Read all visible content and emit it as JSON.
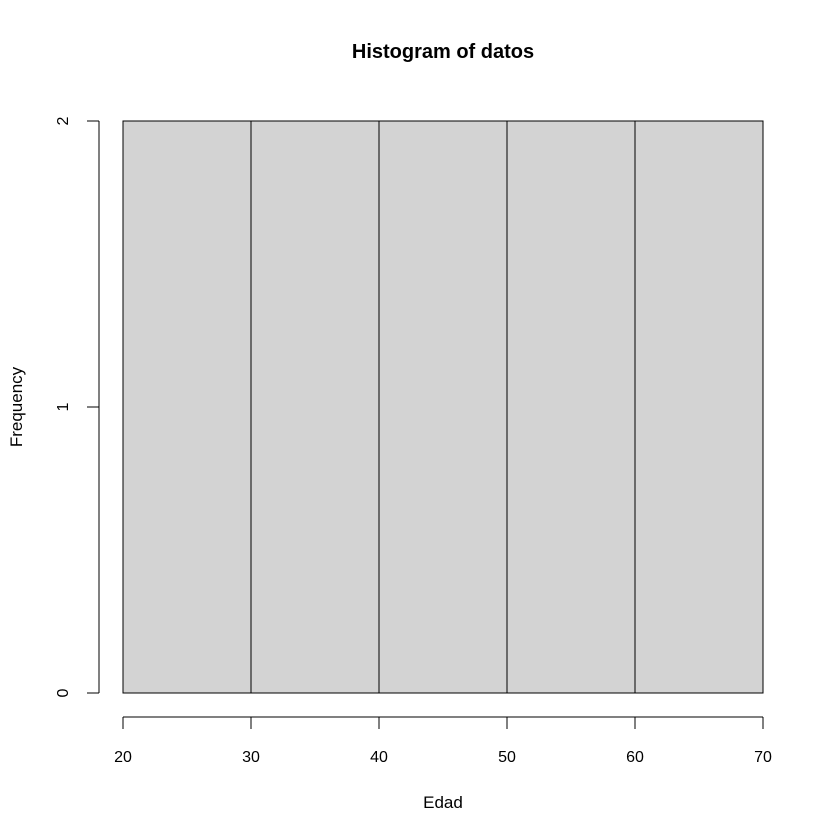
{
  "chart_data": {
    "type": "bar",
    "title": "Histogram of datos",
    "xlabel": "Edad",
    "ylabel": "Frequency",
    "bins": [
      {
        "from": 20,
        "to": 30,
        "value": 2
      },
      {
        "from": 30,
        "to": 40,
        "value": 2
      },
      {
        "from": 40,
        "to": 50,
        "value": 2
      },
      {
        "from": 50,
        "to": 60,
        "value": 2
      },
      {
        "from": 60,
        "to": 70,
        "value": 2
      }
    ],
    "xlim": [
      20,
      70
    ],
    "ylim": [
      0,
      2
    ],
    "x_ticks": [
      20,
      30,
      40,
      50,
      60,
      70
    ],
    "y_ticks": [
      0,
      1,
      2
    ],
    "grid": false,
    "bar_color": "#d3d3d3",
    "edge_color": "#000000"
  }
}
